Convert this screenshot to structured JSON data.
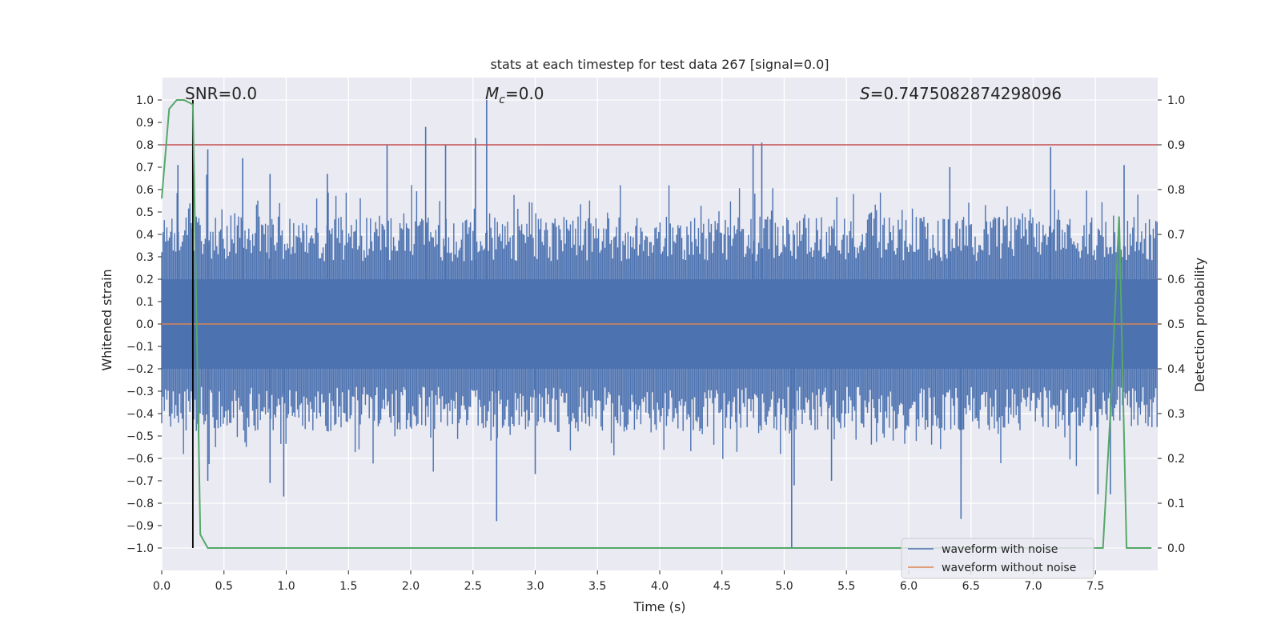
{
  "chart_data": {
    "type": "line",
    "title": "stats at each timestep for test data 267 [signal=0.0]",
    "xlabel": "Time (s)",
    "ylabel": "Whitened strain",
    "y2label": "Detection probability",
    "xlim": [
      0.0,
      8.0
    ],
    "ylim": [
      -1.1,
      1.1
    ],
    "y2lim": [
      -0.05,
      1.05
    ],
    "x_ticks": [
      "0.0",
      "0.5",
      "1.0",
      "1.5",
      "2.0",
      "2.5",
      "3.0",
      "3.5",
      "4.0",
      "4.5",
      "5.0",
      "5.5",
      "6.0",
      "6.5",
      "7.0",
      "7.5"
    ],
    "y_ticks": [
      "1.0",
      "0.9",
      "0.8",
      "0.7",
      "0.6",
      "0.5",
      "0.4",
      "0.3",
      "0.2",
      "0.1",
      "0.0",
      "−0.1",
      "−0.2",
      "−0.3",
      "−0.4",
      "−0.5",
      "−0.6",
      "−0.7",
      "−0.8",
      "−0.9",
      "−1.0"
    ],
    "y2_ticks": [
      "1.0",
      "0.9",
      "0.8",
      "0.7",
      "0.6",
      "0.5",
      "0.4",
      "0.3",
      "0.2",
      "0.1",
      "0.0"
    ],
    "annotations": {
      "snr": "SNR=0.0",
      "mc_symbol": "M",
      "mc_sub": "c",
      "mc_value": "=0.0",
      "s_symbol": "S",
      "s_value": "=0.7475082874298096"
    },
    "threshold": 0.8,
    "marker_time": 0.25,
    "series": [
      {
        "name": "waveform with noise",
        "color": "#4c72b0",
        "envelope_band": [
          -0.2,
          0.2
        ],
        "peaks": [
          {
            "x": 0.13,
            "v": 0.71
          },
          {
            "x": 0.37,
            "v": 0.78
          },
          {
            "x": 0.65,
            "v": 0.74
          },
          {
            "x": 0.87,
            "v": 0.67
          },
          {
            "x": 1.33,
            "v": 0.67
          },
          {
            "x": 1.81,
            "v": 0.8
          },
          {
            "x": 2.12,
            "v": 0.88
          },
          {
            "x": 2.28,
            "v": 0.8
          },
          {
            "x": 2.52,
            "v": 0.83
          },
          {
            "x": 2.61,
            "v": 1.0
          },
          {
            "x": 4.75,
            "v": 0.8
          },
          {
            "x": 4.82,
            "v": 0.81
          },
          {
            "x": 6.33,
            "v": 0.7
          },
          {
            "x": 7.14,
            "v": 0.79
          },
          {
            "x": 7.73,
            "v": 0.71
          },
          {
            "x": 0.37,
            "v": -0.7
          },
          {
            "x": 0.87,
            "v": -0.71
          },
          {
            "x": 0.98,
            "v": -0.77
          },
          {
            "x": 2.69,
            "v": -0.88
          },
          {
            "x": 3.0,
            "v": -0.67
          },
          {
            "x": 5.06,
            "v": -1.0
          },
          {
            "x": 5.08,
            "v": -0.72
          },
          {
            "x": 5.38,
            "v": -0.7
          },
          {
            "x": 6.42,
            "v": -0.87
          },
          {
            "x": 7.52,
            "v": -0.76
          },
          {
            "x": 7.62,
            "v": -0.76
          }
        ]
      },
      {
        "name": "waveform without noise",
        "color": "#dd8452",
        "x": [
          0.0,
          8.0
        ],
        "y": [
          0.0,
          0.0
        ]
      },
      {
        "name": "detection probability",
        "color": "#55a868",
        "axis": "right",
        "x": [
          0.0,
          0.06,
          0.12,
          0.18,
          0.25,
          0.31,
          0.37,
          0.5,
          7.5,
          7.56,
          7.62,
          7.69,
          7.75,
          7.81,
          7.95
        ],
        "y": [
          0.78,
          0.98,
          1.0,
          1.0,
          0.99,
          0.03,
          0.0,
          0.0,
          0.0,
          0.0,
          0.3,
          0.74,
          0.0,
          0.0,
          0.0
        ]
      }
    ],
    "legend": {
      "position": "lower-right",
      "entries": [
        {
          "label": "waveform with noise",
          "color": "#4c72b0"
        },
        {
          "label": "waveform without noise",
          "color": "#dd8452"
        }
      ]
    },
    "colors": {
      "plot_bg": "#eaeaf2",
      "grid": "#ffffff",
      "threshold": "#c44e52",
      "marker": "#000000"
    }
  }
}
